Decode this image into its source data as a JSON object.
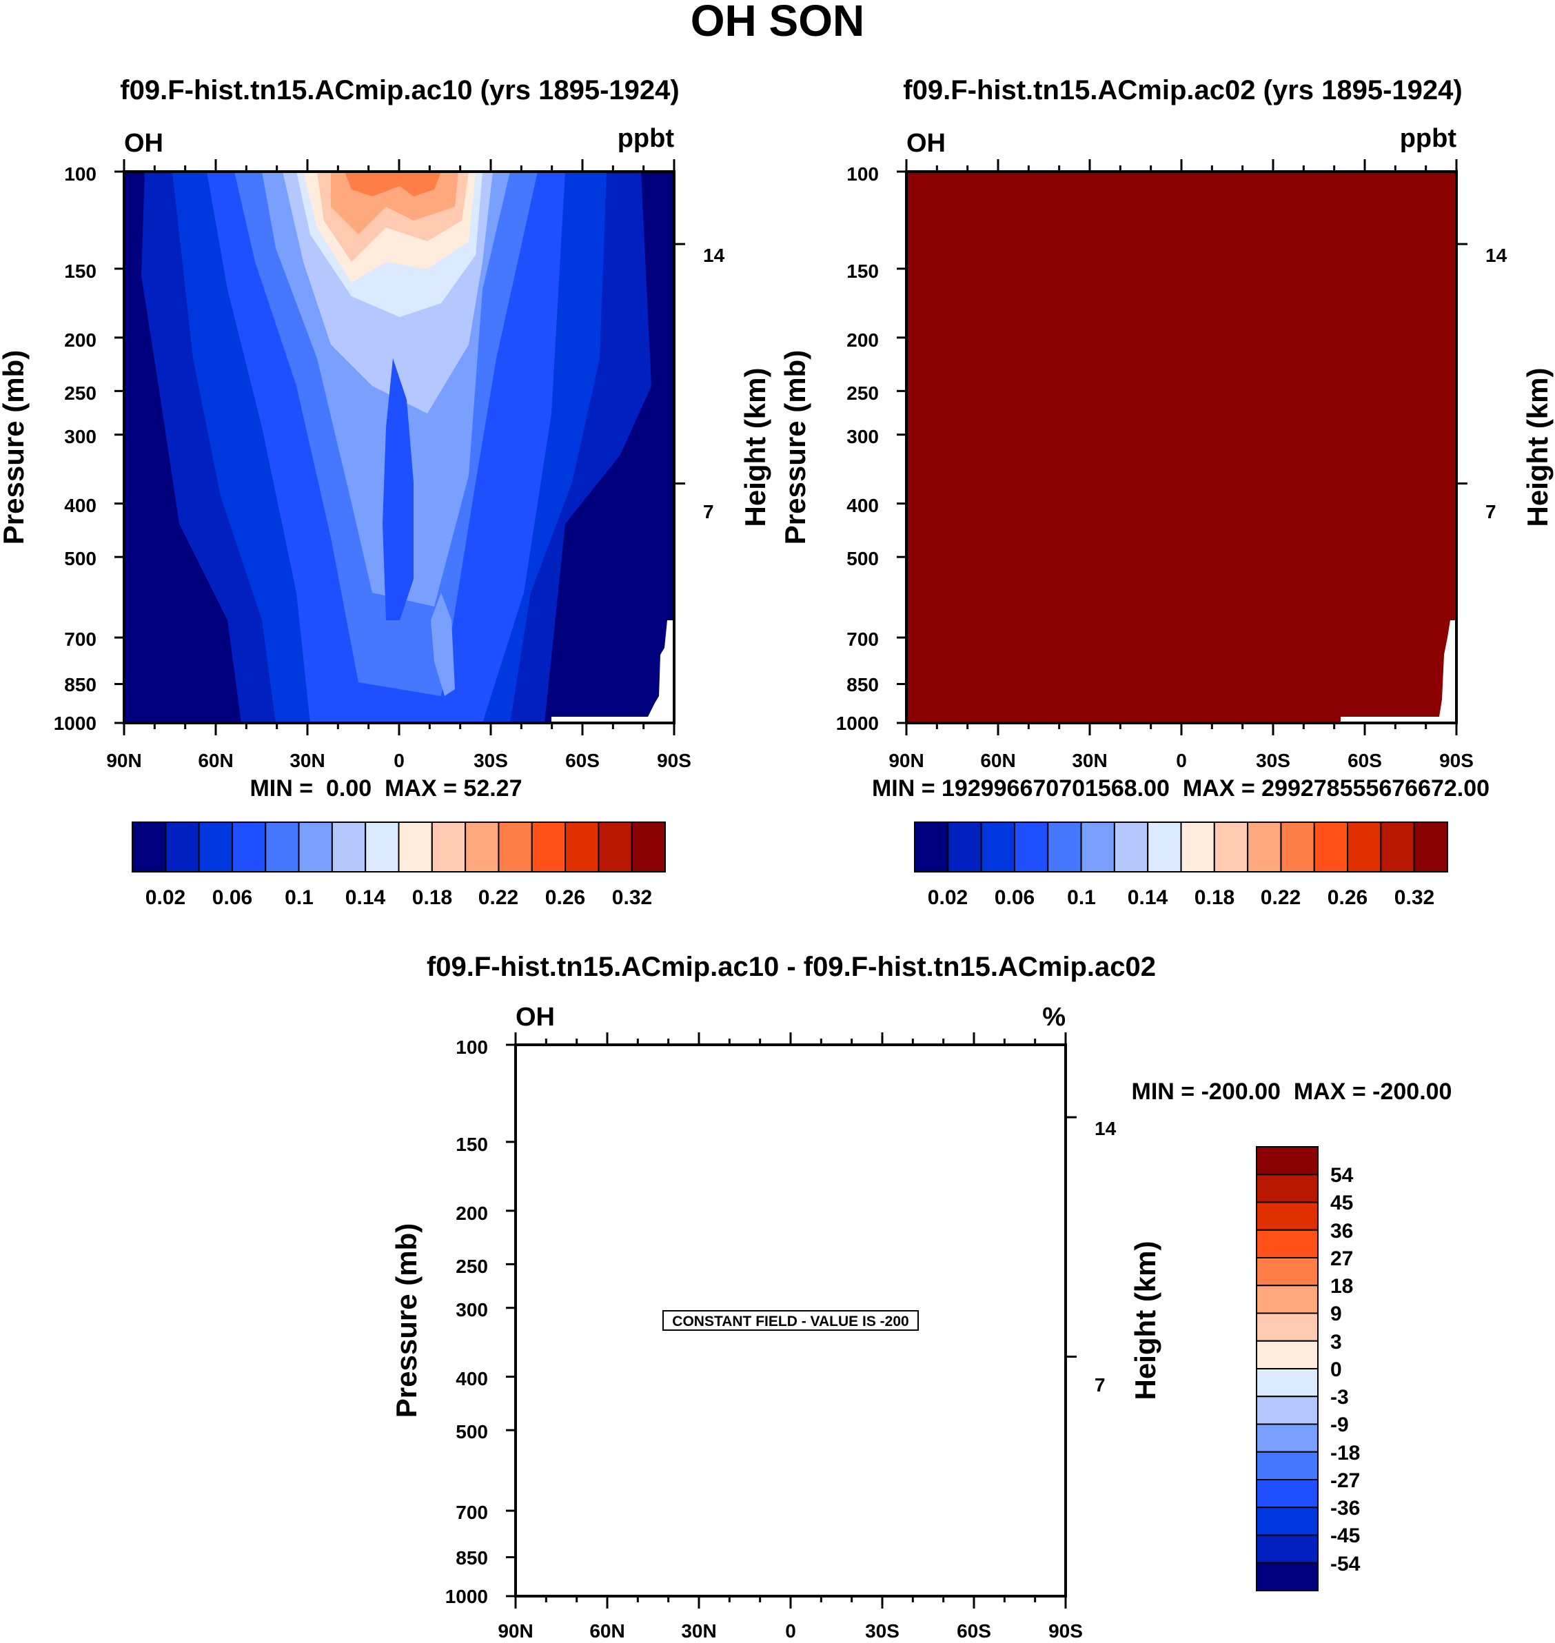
{
  "page_title": "OH SON",
  "chart_data": [
    {
      "type": "heatmap",
      "title": "f09.F-hist.tn15.ACmip.ac10 (yrs 1895-1924)",
      "left_label": "OH",
      "right_label": "ppbt",
      "ylabel": "Pressure (mb)",
      "y2label": "Height (km)",
      "x_ticks": [
        "90N",
        "60N",
        "30N",
        "0",
        "30S",
        "60S",
        "90S"
      ],
      "y_ticks": [
        "100",
        "150",
        "200",
        "250",
        "300",
        "400",
        "500",
        "700",
        "850",
        "1000"
      ],
      "y2_ticks": [
        "14",
        "7"
      ],
      "min_label": "MIN =",
      "min_value": "0.00",
      "max_label": "MAX =",
      "max_value": "52.27",
      "colorbar_labels": [
        "0.02",
        "0.06",
        "0.1",
        "0.14",
        "0.18",
        "0.22",
        "0.26",
        "0.32"
      ],
      "fill": "contour"
    },
    {
      "type": "heatmap",
      "title": "f09.F-hist.tn15.ACmip.ac02 (yrs 1895-1924)",
      "left_label": "OH",
      "right_label": "ppbt",
      "ylabel": "Pressure (mb)",
      "y2label": "Height (km)",
      "x_ticks": [
        "90N",
        "60N",
        "30N",
        "0",
        "30S",
        "60S",
        "90S"
      ],
      "y_ticks": [
        "100",
        "150",
        "200",
        "250",
        "300",
        "400",
        "500",
        "700",
        "850",
        "1000"
      ],
      "y2_ticks": [
        "14",
        "7"
      ],
      "min_label": "MIN =",
      "min_value": "192996670701568.00",
      "max_label": "MAX =",
      "max_value": "299278555676672.00",
      "colorbar_labels": [
        "0.02",
        "0.06",
        "0.1",
        "0.14",
        "0.18",
        "0.22",
        "0.26",
        "0.32"
      ],
      "fill": "solid"
    },
    {
      "type": "heatmap",
      "title": "f09.F-hist.tn15.ACmip.ac10 - f09.F-hist.tn15.ACmip.ac02",
      "left_label": "OH",
      "right_label": "%",
      "ylabel": "Pressure (mb)",
      "y2label": "Height (km)",
      "x_ticks": [
        "90N",
        "60N",
        "30N",
        "0",
        "30S",
        "60S",
        "90S"
      ],
      "y_ticks": [
        "100",
        "150",
        "200",
        "250",
        "300",
        "400",
        "500",
        "700",
        "850",
        "1000"
      ],
      "y2_ticks": [
        "14",
        "7"
      ],
      "min_label": "MIN =",
      "min_value": "-200.00",
      "max_label": "MAX =",
      "max_value": "-200.00",
      "note": "CONSTANT FIELD - VALUE IS -200",
      "colorbar_labels": [
        "54",
        "45",
        "36",
        "27",
        "18",
        "9",
        "3",
        "0",
        "-3",
        "-9",
        "-18",
        "-27",
        "-36",
        "-45",
        "-54"
      ],
      "fill": "none"
    }
  ],
  "colors": {
    "scale": [
      "#00007f",
      "#0020bf",
      "#0038e0",
      "#1e50ff",
      "#4678ff",
      "#7aa0ff",
      "#b4c8ff",
      "#dceaff",
      "#ffecdc",
      "#ffcab0",
      "#ffa87e",
      "#ff7e48",
      "#ff5218",
      "#e03000",
      "#b81800",
      "#8b0000"
    ],
    "ac02_fill": "#8b0000"
  }
}
